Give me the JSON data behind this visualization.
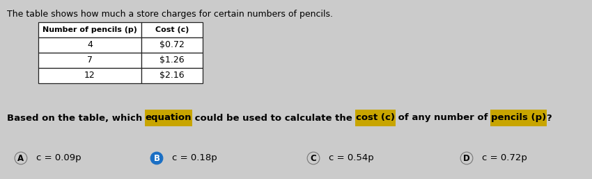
{
  "title_text": "The table shows how much a store charges for certain numbers of pencils.",
  "table_col1_header": "Number of pencils (p)",
  "table_col2_header": "Cost (c)",
  "table_rows": [
    [
      "4",
      "$0.72"
    ],
    [
      "7",
      "$1.26"
    ],
    [
      "12",
      "$2.16"
    ]
  ],
  "question_segments": [
    {
      "text": "Based on the table, which ",
      "bold": true,
      "highlight": null
    },
    {
      "text": "equation",
      "bold": true,
      "highlight": "#c8a500"
    },
    {
      "text": " could be used to calculate the ",
      "bold": true,
      "highlight": null
    },
    {
      "text": "cost (c)",
      "bold": true,
      "highlight": "#c8a500"
    },
    {
      "text": " of any number of ",
      "bold": true,
      "highlight": null
    },
    {
      "text": "pencils (p)",
      "bold": true,
      "highlight": "#c8a500"
    },
    {
      "text": "?",
      "bold": true,
      "highlight": null
    }
  ],
  "options": [
    {
      "label": "A",
      "equation": "c = 0.09p",
      "circle_color": "#cccccc",
      "circle_text_color": "#000000",
      "is_selected": false
    },
    {
      "label": "B",
      "equation": "c = 0.18p",
      "circle_color": "#1a6fc4",
      "circle_text_color": "#ffffff",
      "is_selected": true
    },
    {
      "label": "C",
      "equation": "c = 0.54p",
      "circle_color": "#cccccc",
      "circle_text_color": "#000000",
      "is_selected": false
    },
    {
      "label": "D",
      "equation": "c = 0.72p",
      "circle_color": "#cccccc",
      "circle_text_color": "#000000",
      "is_selected": false
    }
  ],
  "bg_color": "#cbcbcb",
  "fig_width": 8.5,
  "fig_height": 2.58,
  "dpi": 100
}
